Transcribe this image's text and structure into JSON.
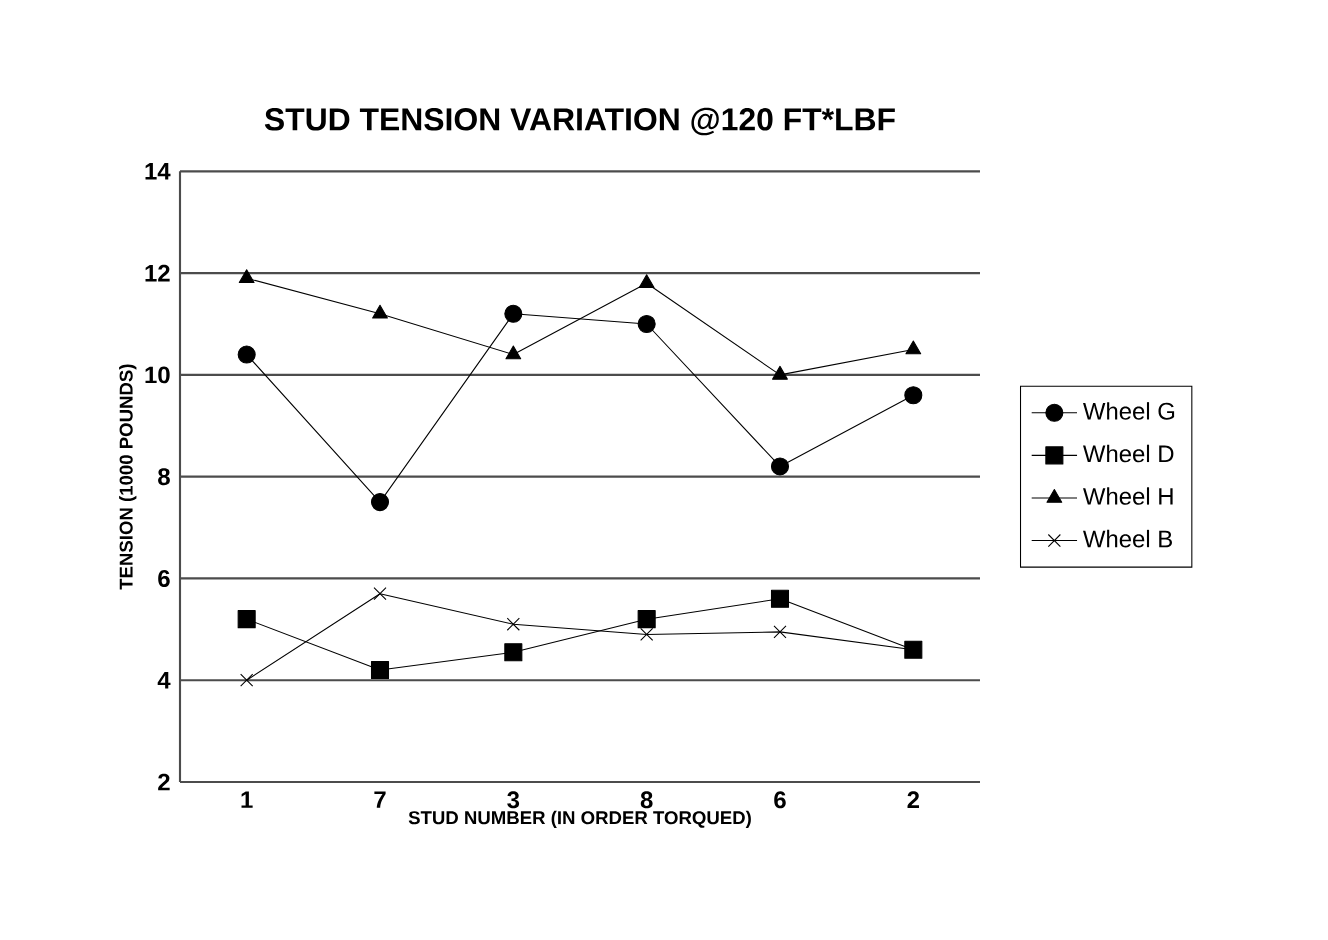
{
  "chart_data": {
    "type": "line",
    "title": "STUD TENSION VARIATION @120 FT*LBF",
    "xlabel": "STUD NUMBER (IN ORDER TORQUED)",
    "ylabel": "TENSION (1000 POUNDS)",
    "categories": [
      "1",
      "7",
      "3",
      "8",
      "6",
      "2"
    ],
    "ylim": [
      2,
      14
    ],
    "yticks": [
      2,
      4,
      6,
      8,
      10,
      12,
      14
    ],
    "grid": "y",
    "legend": "right",
    "line_style": "solid",
    "series": [
      {
        "name": "Wheel G",
        "color": "#000000",
        "marker": "circle",
        "values": [
          10.4,
          7.5,
          11.2,
          11.0,
          8.2,
          9.6
        ]
      },
      {
        "name": "Wheel D",
        "color": "#000000",
        "marker": "square",
        "values": [
          5.2,
          4.2,
          4.55,
          5.2,
          5.6,
          4.6
        ]
      },
      {
        "name": "Wheel H",
        "color": "#000000",
        "marker": "triangle",
        "values": [
          11.9,
          11.2,
          10.4,
          11.8,
          10.0,
          10.5
        ]
      },
      {
        "name": "Wheel B",
        "color": "#000000",
        "marker": "cross",
        "values": [
          4.0,
          5.7,
          5.1,
          4.9,
          4.95,
          4.6
        ]
      }
    ]
  }
}
